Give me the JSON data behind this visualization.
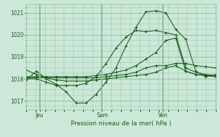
{
  "title": "Pression niveau de la mer( hPa )",
  "bg_color": "#cce8d8",
  "grid_color": "#88b898",
  "line_color": "#1a5c1a",
  "ylim": [
    1016.6,
    1021.4
  ],
  "yticks": [
    1017,
    1018,
    1019,
    1020,
    1021
  ],
  "xtick_labels": [
    "Jeu",
    "Sam",
    "Ven"
  ],
  "xtick_positions": [
    0.07,
    0.4,
    0.72
  ],
  "series": [
    [
      1017.95,
      1018.35,
      1018.0,
      1017.75,
      1017.4,
      1016.9,
      1016.9,
      1017.3,
      1017.85,
      1018.5,
      1019.5,
      1020.35,
      1021.05,
      1021.1,
      1021.0,
      1020.25,
      1019.8,
      1018.35,
      1018.1,
      1018.2
    ],
    [
      1018.0,
      1018.0,
      1017.85,
      1017.7,
      1017.7,
      1017.7,
      1017.8,
      1018.1,
      1018.7,
      1019.4,
      1019.9,
      1020.2,
      1020.15,
      1020.2,
      1020.1,
      1020.0,
      1018.5,
      1018.3,
      1018.2,
      1018.15
    ],
    [
      1018.05,
      1018.05,
      1018.05,
      1018.05,
      1018.05,
      1018.05,
      1018.05,
      1018.05,
      1018.1,
      1018.15,
      1018.2,
      1018.3,
      1018.5,
      1018.6,
      1018.6,
      1018.7,
      1018.7,
      1018.6,
      1018.55,
      1018.5
    ],
    [
      1018.1,
      1018.1,
      1018.1,
      1018.1,
      1018.1,
      1018.1,
      1018.1,
      1018.15,
      1018.2,
      1018.3,
      1018.4,
      1018.6,
      1018.9,
      1019.2,
      1019.75,
      1019.85,
      1018.35,
      1018.2,
      1018.15,
      1018.1
    ],
    [
      1018.4,
      1018.2,
      1018.05,
      1017.95,
      1017.9,
      1017.9,
      1017.9,
      1017.95,
      1018.0,
      1018.05,
      1018.1,
      1018.15,
      1018.2,
      1018.3,
      1018.5,
      1018.6,
      1018.35,
      1018.2,
      1018.15,
      1018.1
    ]
  ],
  "n_points": 20,
  "vline_x": [
    0.07,
    0.4,
    0.72
  ]
}
